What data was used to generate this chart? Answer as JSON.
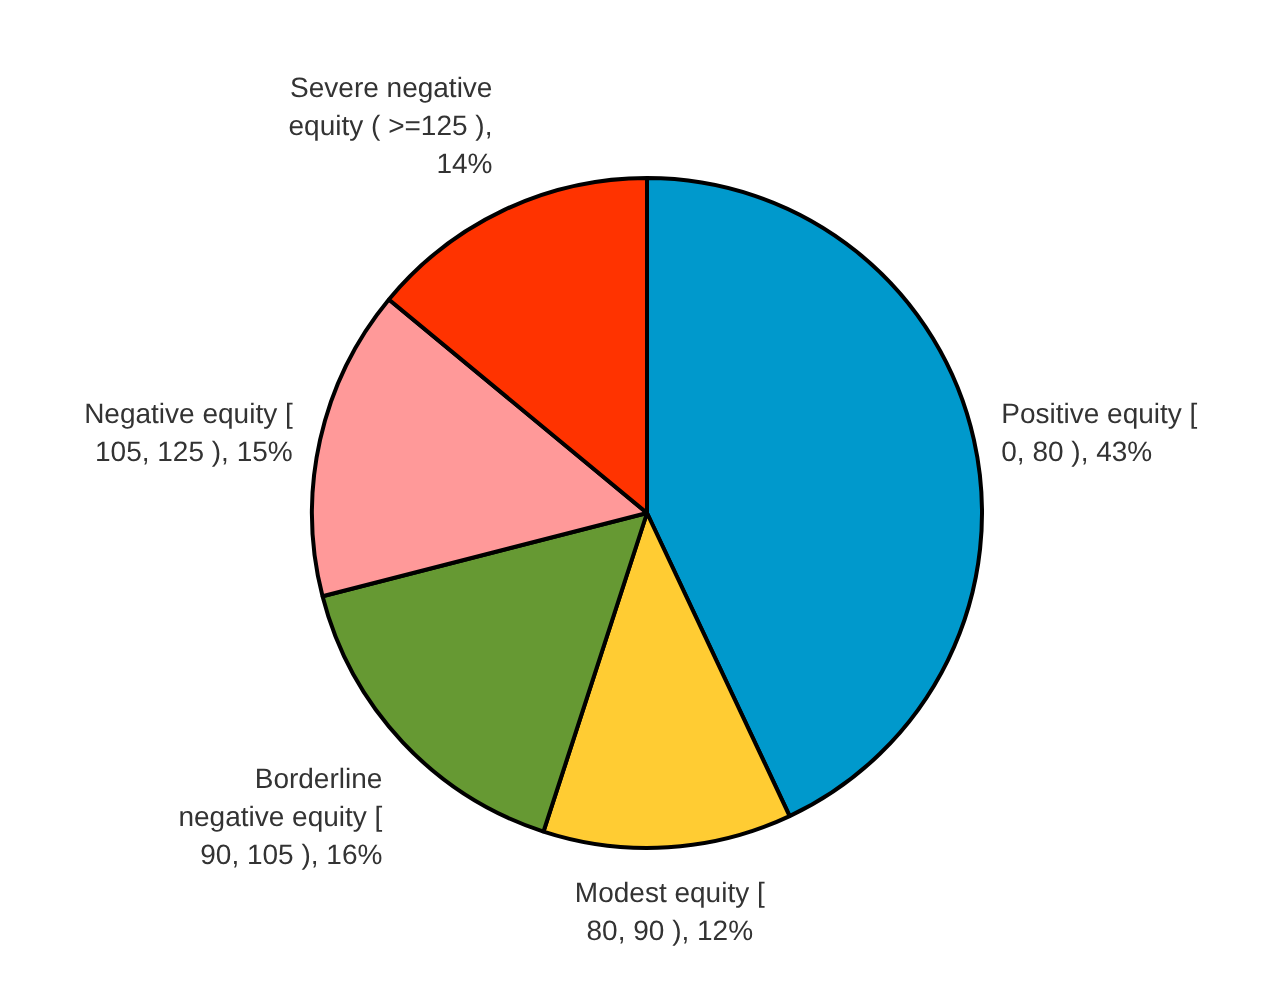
{
  "chart_data": {
    "type": "pie",
    "categories": [
      "Positive equity [ 0, 80 ), 43%",
      "Modest equity [ 80, 90 ), 12%",
      "Borderline negative equity [ 90, 105 ), 16%",
      "Negative equity [ 105, 125 ), 15%",
      "Severe negative equity ( >=125 ), 14%"
    ],
    "values": [
      43,
      12,
      16,
      15,
      14
    ],
    "colors": [
      "#0099cc",
      "#ffcc33",
      "#669933",
      "#ff9999",
      "#ff3300"
    ],
    "legend": false
  }
}
